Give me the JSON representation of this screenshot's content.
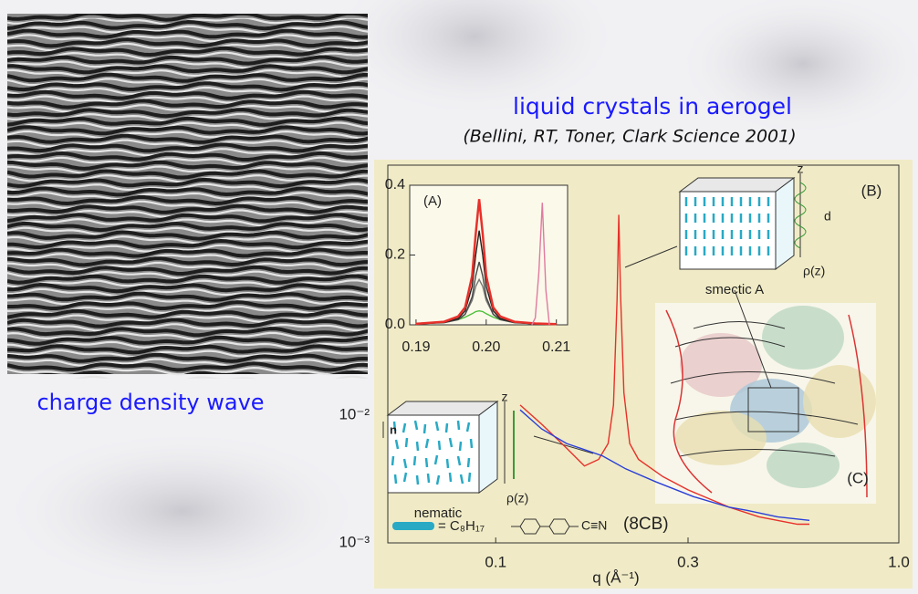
{
  "slide": {
    "title": "liquid crystals in aerogel",
    "citation": "(Bellini, RT, Toner, Clark Science 2001)",
    "caption": "charge density wave"
  },
  "figure": {
    "panel_b": "(B)",
    "panel_c": "(C)",
    "smectic": {
      "label": "smectic A",
      "z": "z",
      "d": "d",
      "rho": "ρ(z)"
    },
    "nematic": {
      "label": "nematic",
      "z": "z",
      "rho": "ρ(z)",
      "director": "n"
    },
    "formula_left": "= C₈H₁₇",
    "formula_right": "C≡N",
    "compound": "(8CB)"
  },
  "chart_data": [
    {
      "type": "line",
      "x_label": "q (Å⁻¹)",
      "xlog": true,
      "ylog": true,
      "xlim": [
        0.054,
        1.0
      ],
      "ylim": [
        0.001,
        0.9
      ],
      "xticks": [
        0.1,
        0.3,
        {
          "value": 1.0,
          "label": "1.0"
        }
      ],
      "yticks": [
        {
          "value": 0.01,
          "label": "10⁻²"
        },
        {
          "value": 0.001,
          "label": "10⁻³"
        }
      ],
      "series": [
        {
          "color": "#e8302a",
          "x": [
            0.115,
            0.13,
            0.15,
            0.166,
            0.18,
            0.19,
            0.196,
            0.2,
            0.202,
            0.204,
            0.208,
            0.215,
            0.226,
            0.26,
            0.3,
            0.38,
            0.45,
            0.56,
            0.6
          ],
          "values": [
            0.012,
            0.0085,
            0.0055,
            0.004,
            0.0045,
            0.006,
            0.012,
            0.08,
            0.37,
            0.09,
            0.015,
            0.006,
            0.0045,
            0.0033,
            0.0026,
            0.0019,
            0.0016,
            0.0014,
            0.0014
          ]
        },
        {
          "color": "#2a3fd8",
          "x": [
            0.115,
            0.13,
            0.15,
            0.184,
            0.21,
            0.25,
            0.31,
            0.38,
            0.42,
            0.5,
            0.6
          ],
          "values": [
            0.011,
            0.0078,
            0.006,
            0.0048,
            0.0038,
            0.003,
            0.0023,
            0.0019,
            0.0018,
            0.0016,
            0.0015
          ]
        }
      ]
    },
    {
      "type": "line",
      "panel": "(A)",
      "xlim": [
        0.1891,
        0.2116
      ],
      "ylim": [
        0,
        0.4
      ],
      "xticks": [
        0.19,
        {
          "value": 0.2,
          "label": "0.20"
        },
        0.21
      ],
      "yticks": [
        0.4,
        0.2,
        {
          "value": 0,
          "label": "0.0"
        }
      ],
      "series": [
        {
          "color": "#4bbf3a",
          "x": [
            0.19,
            0.194,
            0.196,
            0.197,
            0.198,
            0.1985,
            0.199,
            0.1995,
            0.2,
            0.201,
            0.202,
            0.204,
            0.207,
            0.21
          ],
          "values": [
            0.003,
            0.008,
            0.015,
            0.022,
            0.032,
            0.038,
            0.04,
            0.038,
            0.032,
            0.022,
            0.015,
            0.008,
            0.004,
            0.002
          ]
        },
        {
          "color": "#777777",
          "x": [
            0.19,
            0.194,
            0.196,
            0.197,
            0.198,
            0.1985,
            0.199,
            0.1995,
            0.2,
            0.201,
            0.202,
            0.204,
            0.207,
            0.21
          ],
          "values": [
            0.004,
            0.008,
            0.016,
            0.03,
            0.07,
            0.11,
            0.13,
            0.11,
            0.07,
            0.03,
            0.016,
            0.008,
            0.004,
            0.002
          ]
        },
        {
          "color": "#4a4a4a",
          "x": [
            0.19,
            0.194,
            0.196,
            0.197,
            0.198,
            0.1985,
            0.199,
            0.1995,
            0.2,
            0.201,
            0.202,
            0.204,
            0.207,
            0.21
          ],
          "values": [
            0.003,
            0.006,
            0.015,
            0.03,
            0.08,
            0.14,
            0.18,
            0.14,
            0.08,
            0.03,
            0.015,
            0.006,
            0.003,
            0.002
          ]
        },
        {
          "color": "#222222",
          "x": [
            0.19,
            0.194,
            0.196,
            0.197,
            0.198,
            0.1985,
            0.199,
            0.1995,
            0.2,
            0.201,
            0.202,
            0.204,
            0.207,
            0.21
          ],
          "values": [
            0.003,
            0.007,
            0.018,
            0.04,
            0.11,
            0.2,
            0.27,
            0.2,
            0.11,
            0.04,
            0.018,
            0.007,
            0.003,
            0.002
          ]
        },
        {
          "color": "#e8302a",
          "x": [
            0.19,
            0.194,
            0.196,
            0.197,
            0.198,
            0.1985,
            0.199,
            0.1995,
            0.2,
            0.201,
            0.202,
            0.204,
            0.207,
            0.21
          ],
          "values": [
            0.003,
            0.009,
            0.024,
            0.05,
            0.14,
            0.26,
            0.36,
            0.26,
            0.14,
            0.05,
            0.024,
            0.009,
            0.004,
            0.002
          ]
        },
        {
          "color": "#e07aa0",
          "x": [
            0.2065,
            0.207,
            0.2075,
            0.208,
            0.2085,
            0.209
          ],
          "values": [
            0,
            0.02,
            0.15,
            0.35,
            0.1,
            0
          ]
        }
      ]
    }
  ]
}
